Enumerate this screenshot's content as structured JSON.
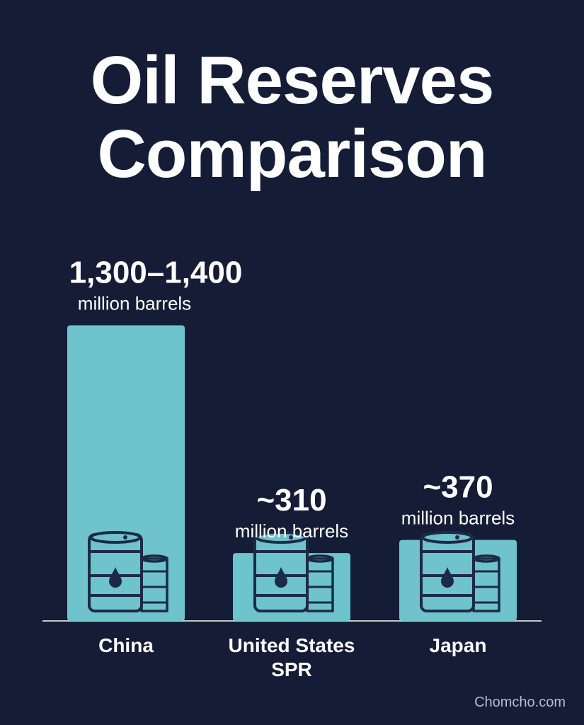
{
  "chart_data": {
    "type": "bar",
    "title": "Oil Reserves Comparison",
    "categories": [
      [
        "China"
      ],
      [
        "United States",
        "SPR"
      ],
      [
        "Japan"
      ]
    ],
    "values": [
      1350,
      310,
      370
    ],
    "value_labels": [
      "1,300–1,400",
      "~310",
      "~370"
    ],
    "unit": "million barrels",
    "ylim": [
      0,
      1400
    ],
    "grid": false,
    "bar_color": "#6ec3cd",
    "icon": "oil-barrel-icon"
  },
  "watermark": "Chomcho.com"
}
